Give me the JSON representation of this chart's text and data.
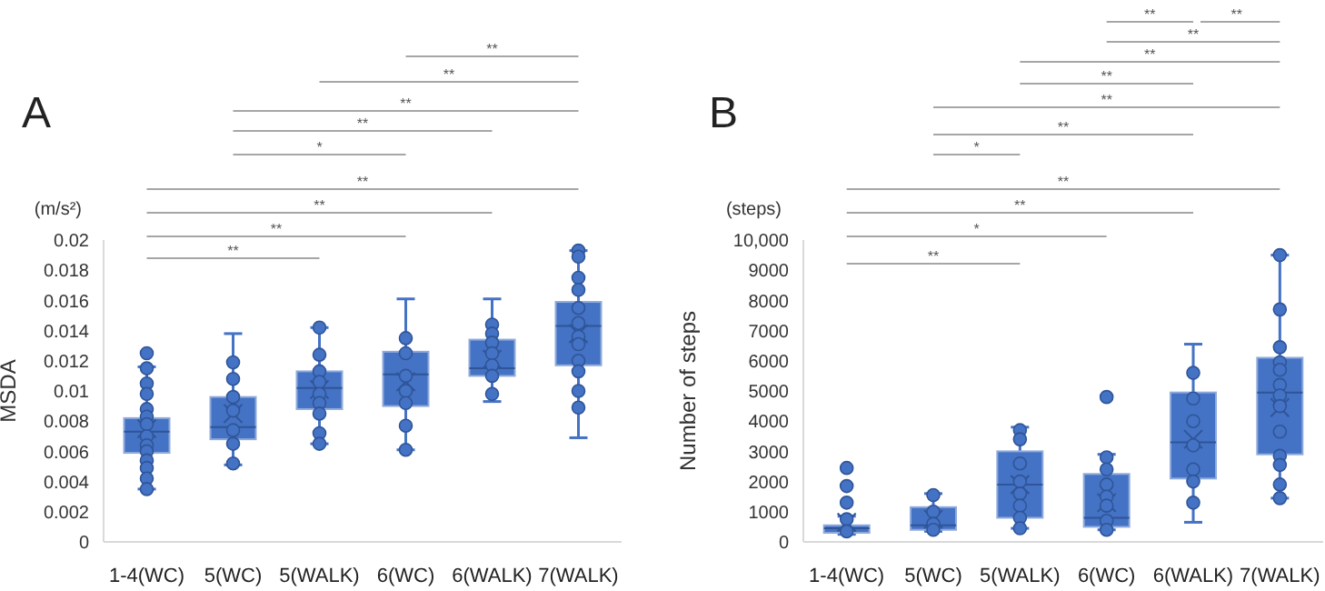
{
  "chart_data": [
    {
      "type": "box",
      "title": "A",
      "ylabel": "MSDA",
      "categories": [
        "1-4(WC)",
        "5(WC)",
        "5(WALK)",
        "6(WC)",
        "6(WALK)",
        "7(WALK)"
      ],
      "ylim": [
        0,
        0.02
      ],
      "yticks": [
        0,
        0.002,
        0.004,
        0.006,
        0.008,
        0.01,
        0.012,
        0.014,
        0.016,
        0.018,
        0.02
      ],
      "marker": "circle",
      "annotations": [
        "(m/s²)",
        "**",
        "**",
        "**",
        "**",
        "*",
        "**",
        "**",
        "**",
        "**"
      ],
      "series": [
        {
          "type": "box",
          "color": "#4472c4",
          "boxes": [
            {
              "low": 0.0035,
              "q1": 0.0059,
              "median": 0.0073,
              "q3": 0.0082,
              "high": 0.0116,
              "mean": 0.0075,
              "outliers": [
                0.0125
              ]
            },
            {
              "low": 0.0051,
              "q1": 0.0068,
              "median": 0.0076,
              "q3": 0.0096,
              "high": 0.0138,
              "mean": 0.0085
            },
            {
              "low": 0.0065,
              "q1": 0.0088,
              "median": 0.0102,
              "q3": 0.0113,
              "high": 0.0142,
              "mean": 0.0101
            },
            {
              "low": 0.0061,
              "q1": 0.009,
              "median": 0.0111,
              "q3": 0.0126,
              "high": 0.0161,
              "mean": 0.0106
            },
            {
              "low": 0.0093,
              "q1": 0.011,
              "median": 0.0115,
              "q3": 0.0134,
              "high": 0.0161,
              "mean": 0.0121
            },
            {
              "low": 0.0069,
              "q1": 0.0117,
              "median": 0.0143,
              "q3": 0.0159,
              "high": 0.0193,
              "mean": 0.0138
            }
          ]
        },
        {
          "type": "scatter",
          "color": "#4472c4",
          "x": [
            "1-4(WC)",
            "1-4(WC)",
            "1-4(WC)",
            "1-4(WC)",
            "1-4(WC)",
            "1-4(WC)",
            "1-4(WC)",
            "1-4(WC)",
            "1-4(WC)",
            "1-4(WC)",
            "1-4(WC)",
            "1-4(WC)",
            "1-4(WC)",
            "5(WC)",
            "5(WC)",
            "5(WC)",
            "5(WC)",
            "5(WC)",
            "5(WC)",
            "5(WC)",
            "5(WC)",
            "5(WALK)",
            "5(WALK)",
            "5(WALK)",
            "5(WALK)",
            "5(WALK)",
            "5(WALK)",
            "5(WALK)",
            "5(WALK)",
            "5(WALK)",
            "6(WC)",
            "6(WC)",
            "6(WC)",
            "6(WC)",
            "6(WC)",
            "6(WC)",
            "6(WC)",
            "6(WALK)",
            "6(WALK)",
            "6(WALK)",
            "6(WALK)",
            "6(WALK)",
            "6(WALK)",
            "6(WALK)",
            "7(WALK)",
            "7(WALK)",
            "7(WALK)",
            "7(WALK)",
            "7(WALK)",
            "7(WALK)",
            "7(WALK)",
            "7(WALK)",
            "7(WALK)",
            "7(WALK)",
            "7(WALK)",
            "7(WALK)"
          ],
          "values": [
            0.0115,
            0.0105,
            0.0098,
            0.0088,
            0.0083,
            0.0078,
            0.007,
            0.0064,
            0.006,
            0.0054,
            0.0049,
            0.0042,
            0.0035,
            0.0119,
            0.0108,
            0.0096,
            0.0087,
            0.0074,
            0.0065,
            null,
            0.0052,
            0.0142,
            0.0124,
            0.0113,
            0.0106,
            0.0098,
            0.0092,
            0.0085,
            0.0072,
            0.0065,
            0.0135,
            0.0125,
            0.011,
            0.01,
            0.0092,
            0.0077,
            0.0061,
            0.0144,
            0.0138,
            0.0132,
            0.0125,
            0.0117,
            0.011,
            0.0098,
            0.0193,
            0.0189,
            0.0175,
            0.0167,
            0.0155,
            0.0145,
            0.0136,
            0.0131,
            0.012,
            0.0113,
            0.01,
            0.0089
          ]
        }
      ]
    },
    {
      "type": "box",
      "title": "B",
      "ylabel": "Number of steps",
      "categories": [
        "1-4(WC)",
        "5(WC)",
        "5(WALK)",
        "6(WC)",
        "6(WALK)",
        "7(WALK)"
      ],
      "ylim": [
        0,
        10000
      ],
      "yticks": [
        0,
        1000,
        2000,
        3000,
        4000,
        5000,
        6000,
        7000,
        8000,
        9000,
        {
          "value": 10000,
          "label": "10,000"
        }
      ],
      "marker": "circle",
      "annotations": [
        "(steps)",
        "**",
        "**",
        "**",
        "**",
        "**",
        "**",
        "**",
        "*",
        "**",
        "**",
        "*",
        "**"
      ],
      "series": [
        {
          "type": "box",
          "color": "#4472c4",
          "boxes": [
            {
              "low": 250,
              "q1": 300,
              "median": 450,
              "q3": 550,
              "high": 850,
              "mean": 650,
              "outliers": [
                1300,
                1850,
                2450
              ]
            },
            {
              "low": 350,
              "q1": 400,
              "median": 550,
              "q3": 1150,
              "high": 1600,
              "mean": 750
            },
            {
              "low": 450,
              "q1": 800,
              "median": 1900,
              "q3": 3000,
              "high": 3800,
              "mean": 1900
            },
            {
              "low": 400,
              "q1": 500,
              "median": 800,
              "q3": 2250,
              "high": 2900,
              "mean": 1300,
              "outliers": [
                4800
              ]
            },
            {
              "low": 650,
              "q1": 2100,
              "median": 3300,
              "q3": 4950,
              "high": 6550,
              "mean": 3400
            },
            {
              "low": 1450,
              "q1": 2900,
              "median": 4950,
              "q3": 6100,
              "high": 9500,
              "mean": 4450
            }
          ]
        },
        {
          "type": "scatter",
          "color": "#4472c4",
          "x": [
            "1-4(WC)",
            "1-4(WC)",
            "5(WC)",
            "5(WC)",
            "5(WC)",
            "5(WC)",
            "5(WALK)",
            "5(WALK)",
            "5(WALK)",
            "5(WALK)",
            "5(WALK)",
            "5(WALK)",
            "5(WALK)",
            "5(WALK)",
            "6(WC)",
            "6(WC)",
            "6(WC)",
            "6(WC)",
            "6(WC)",
            "6(WC)",
            "6(WC)",
            "6(WALK)",
            "6(WALK)",
            "6(WALK)",
            "6(WALK)",
            "6(WALK)",
            "6(WALK)",
            "6(WALK)",
            "7(WALK)",
            "7(WALK)",
            "7(WALK)",
            "7(WALK)",
            "7(WALK)",
            "7(WALK)",
            "7(WALK)",
            "7(WALK)",
            "7(WALK)",
            "7(WALK)",
            "7(WALK)",
            "7(WALK)",
            "7(WALK)"
          ],
          "values": [
            750,
            350,
            1550,
            1000,
            600,
            400,
            3700,
            3400,
            2600,
            2000,
            1600,
            1200,
            800,
            450,
            2800,
            2400,
            1900,
            1500,
            1200,
            700,
            400,
            5600,
            4750,
            4000,
            3200,
            2400,
            2000,
            1300,
            9500,
            7700,
            6450,
            5950,
            5700,
            5200,
            4850,
            4500,
            3650,
            2850,
            2550,
            1900,
            1450
          ]
        }
      ]
    }
  ]
}
